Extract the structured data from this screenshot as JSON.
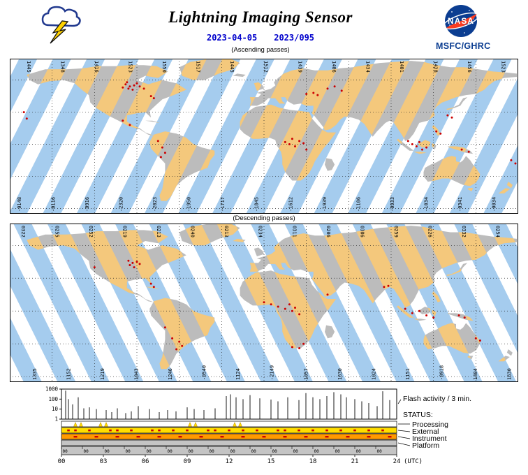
{
  "header": {
    "title": "Lightning Imaging Sensor",
    "date_iso": "2023-04-05",
    "date_doy": "2023/095",
    "ascending_label": "(Ascending passes)",
    "descending_label": "(Descending passes)",
    "org": "MSFC/GHRC",
    "nasa_logo_text": "NASA"
  },
  "colors": {
    "link_blue": "#0000CC",
    "nasa_navy": "#0B3D91",
    "swath_ocean": "#A5CCEE",
    "swath_land": "#F4C87C",
    "land_gray": "#BCBCBC",
    "flash_red": "#CC0000",
    "status_yellow": "#FFDD00",
    "status_orange": "#FF9900",
    "status_gray": "#C4C4C4",
    "bolt_yellow": "#FFD200"
  },
  "maps": {
    "ascending": {
      "top_labels": [
        "1445",
        "1348",
        "1416",
        "1523",
        "1550",
        "1517",
        "1445",
        "1512",
        "1439",
        "1406",
        "1434",
        "1401",
        "1428",
        "1456",
        "1523"
      ],
      "bottom_labels": [
        "-0148",
        "-0116",
        "-0916",
        "-2320",
        "-2023",
        "-1950",
        "-1717",
        "-1845",
        "-1612",
        "-1939",
        "-1106",
        "-0933",
        "-1034",
        "-0341",
        "-0034"
      ],
      "flashes": [
        [
          -98,
          56
        ],
        [
          -95,
          54
        ],
        [
          -92,
          55
        ],
        [
          -90,
          57
        ],
        [
          -88,
          54
        ],
        [
          -96,
          52
        ],
        [
          -93,
          51
        ],
        [
          -85,
          52
        ],
        [
          -100,
          53
        ],
        [
          -97,
          58
        ],
        [
          -80,
          45
        ],
        [
          -78,
          43
        ],
        [
          -170,
          30
        ],
        [
          -168,
          24
        ],
        [
          -100,
          22
        ],
        [
          -95,
          18
        ],
        [
          -75,
          3
        ],
        [
          -72,
          -3
        ],
        [
          -70,
          -8
        ],
        [
          -73,
          -12
        ],
        [
          35,
          48
        ],
        [
          38,
          46
        ],
        [
          30,
          47
        ],
        [
          45,
          52
        ],
        [
          50,
          54
        ],
        [
          55,
          50
        ],
        [
          15,
          2
        ],
        [
          18,
          0
        ],
        [
          22,
          -2
        ],
        [
          25,
          3
        ],
        [
          28,
          1
        ],
        [
          20,
          5
        ],
        [
          30,
          -5
        ],
        [
          102,
          3
        ],
        [
          105,
          0
        ],
        [
          108,
          -2
        ],
        [
          110,
          2
        ],
        [
          112,
          -5
        ],
        [
          115,
          -3
        ],
        [
          122,
          12
        ],
        [
          125,
          10
        ],
        [
          130,
          27
        ],
        [
          133,
          25
        ],
        [
          140,
          -5
        ],
        [
          145,
          -7
        ],
        [
          175,
          -15
        ],
        [
          178,
          -18
        ]
      ]
    },
    "descending": {
      "top_labels": [
        "0322",
        "0255",
        "0252",
        "0219",
        "0213",
        "0240",
        "0213",
        "0234",
        "0311",
        "0206",
        "0306",
        "0259",
        "0226",
        "0332",
        "0254"
      ],
      "bottom_labels": [
        "1335",
        "1152",
        "1219",
        "1043",
        "1246",
        "-0540",
        "1124",
        "-2149",
        "1057",
        "1630",
        "1024",
        "1151",
        "-0918",
        "1404",
        "1630"
      ],
      "flashes": [
        [
          -96,
          46
        ],
        [
          -93,
          44
        ],
        [
          -90,
          45
        ],
        [
          -95,
          42
        ],
        [
          -88,
          43
        ],
        [
          -92,
          40
        ],
        [
          -80,
          25
        ],
        [
          -78,
          22
        ],
        [
          -65,
          -25
        ],
        [
          -60,
          -28
        ],
        [
          -58,
          -32
        ],
        [
          -62,
          -35
        ],
        [
          -70,
          -15
        ],
        [
          -120,
          40
        ],
        [
          0,
          8
        ],
        [
          5,
          6
        ],
        [
          10,
          4
        ],
        [
          15,
          2
        ],
        [
          20,
          0
        ],
        [
          25,
          -3
        ],
        [
          18,
          6
        ],
        [
          22,
          3
        ],
        [
          20,
          -33
        ],
        [
          25,
          -34
        ],
        [
          28,
          -30
        ],
        [
          45,
          15
        ],
        [
          85,
          22
        ],
        [
          88,
          23
        ],
        [
          100,
          2
        ],
        [
          105,
          -2
        ],
        [
          110,
          0
        ],
        [
          115,
          -4
        ],
        [
          120,
          -6
        ],
        [
          138,
          -4
        ],
        [
          142,
          -6
        ],
        [
          150,
          -25
        ],
        [
          153,
          -27
        ]
      ]
    }
  },
  "chart_data": {
    "type": "bar",
    "title": "Flash activity / 3 min.",
    "xlabel": "(UTC)",
    "yscale": "log",
    "ylim": [
      1,
      1000
    ],
    "xlim": [
      0,
      24
    ],
    "x_ticks": [
      "00",
      "03",
      "06",
      "09",
      "12",
      "15",
      "18",
      "21",
      "24"
    ],
    "y_ticks": [
      "1000",
      "100",
      "10",
      "1"
    ],
    "x": [
      0.3,
      0.5,
      0.8,
      1.2,
      1.6,
      2.0,
      2.5,
      3.2,
      3.6,
      4.0,
      4.6,
      5.0,
      5.5,
      6.3,
      7.0,
      7.6,
      8.2,
      9.0,
      9.5,
      10.2,
      11.0,
      11.8,
      12.1,
      12.5,
      13.0,
      13.5,
      14.2,
      15.0,
      15.5,
      16.2,
      17.0,
      17.5,
      18.0,
      18.5,
      19.0,
      19.5,
      20.0,
      20.4,
      21.0,
      21.5,
      22.0,
      22.6,
      23.0,
      23.5
    ],
    "values": [
      700,
      100,
      30,
      150,
      12,
      15,
      10,
      8,
      5,
      12,
      4,
      6,
      20,
      10,
      5,
      8,
      6,
      15,
      10,
      8,
      12,
      200,
      300,
      150,
      100,
      250,
      120,
      90,
      60,
      150,
      80,
      400,
      150,
      100,
      200,
      500,
      300,
      150,
      100,
      60,
      40,
      20,
      600,
      80
    ]
  },
  "status": {
    "label": "STATUS:",
    "rows": [
      {
        "label": "Processing"
      },
      {
        "label": "External"
      },
      {
        "label": "Instrument"
      },
      {
        "label": "Platform"
      }
    ],
    "processing_marks": [
      1.0,
      1.4,
      2.8,
      3.2,
      9.2,
      9.6,
      12.4,
      12.8
    ],
    "external_marks": [
      0.5,
      1,
      2,
      3.5,
      4,
      5,
      6.5,
      7,
      8,
      9,
      10.5,
      11,
      12,
      13,
      14,
      15.5,
      16,
      17,
      18,
      19,
      20,
      21,
      22,
      23
    ],
    "instrument_marks": [
      1,
      2.5,
      4,
      5.5,
      7,
      8.5,
      10,
      11.5,
      13,
      14.5,
      16,
      17.5,
      19,
      20.5,
      22,
      23.5
    ],
    "inner_tick_label": "00"
  }
}
